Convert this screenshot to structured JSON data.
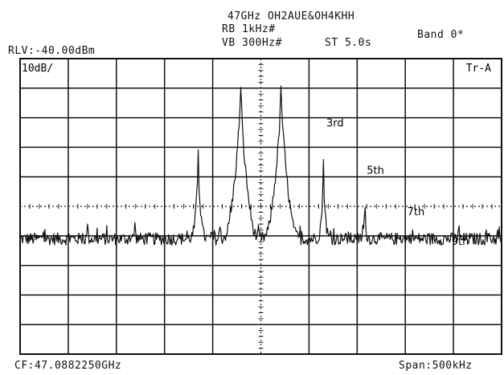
{
  "header": {
    "title": "47GHz OH2AUE&OH4KHH",
    "rbw": "RB 1kHz#",
    "vbw": "VB 300Hz#",
    "sweep": "ST 5.0s",
    "band": "Band 0*",
    "ref_level": "RLV:-40.00dBm"
  },
  "screen": {
    "scale": "10dB/",
    "trace": "Tr-A"
  },
  "footer": {
    "center_freq": "CF:47.0882250GHz",
    "span": "Span:500kHz"
  },
  "chart_data": {
    "type": "line",
    "x_unit": "kHz offset from CF",
    "y_unit": "dB relative to reference level",
    "xlim": [
      -250,
      250
    ],
    "ylim": [
      -100,
      0
    ],
    "grid": true,
    "center_marker": true,
    "noise_floor_db": -61,
    "series": [
      {
        "values": [
          {
            "x": -227,
            "y": -58
          },
          {
            "x": -180,
            "y": -56
          },
          {
            "x": -131,
            "y": -52
          },
          {
            "x": -65,
            "y": -30
          },
          {
            "x": -21,
            "y": -5
          },
          {
            "x": 21,
            "y": -5
          },
          {
            "x": 65,
            "y": -34
          },
          {
            "x": 108,
            "y": -45
          },
          {
            "x": 157,
            "y": -56
          },
          {
            "x": 205,
            "y": -60
          }
        ]
      }
    ],
    "annotations": [
      {
        "text": "3rd",
        "x": 68,
        "y": -23
      },
      {
        "text": "5th",
        "x": 110,
        "y": -39
      },
      {
        "text": "7th",
        "x": 152,
        "y": -53
      },
      {
        "text": "9th",
        "x": 198,
        "y": -63
      }
    ]
  }
}
